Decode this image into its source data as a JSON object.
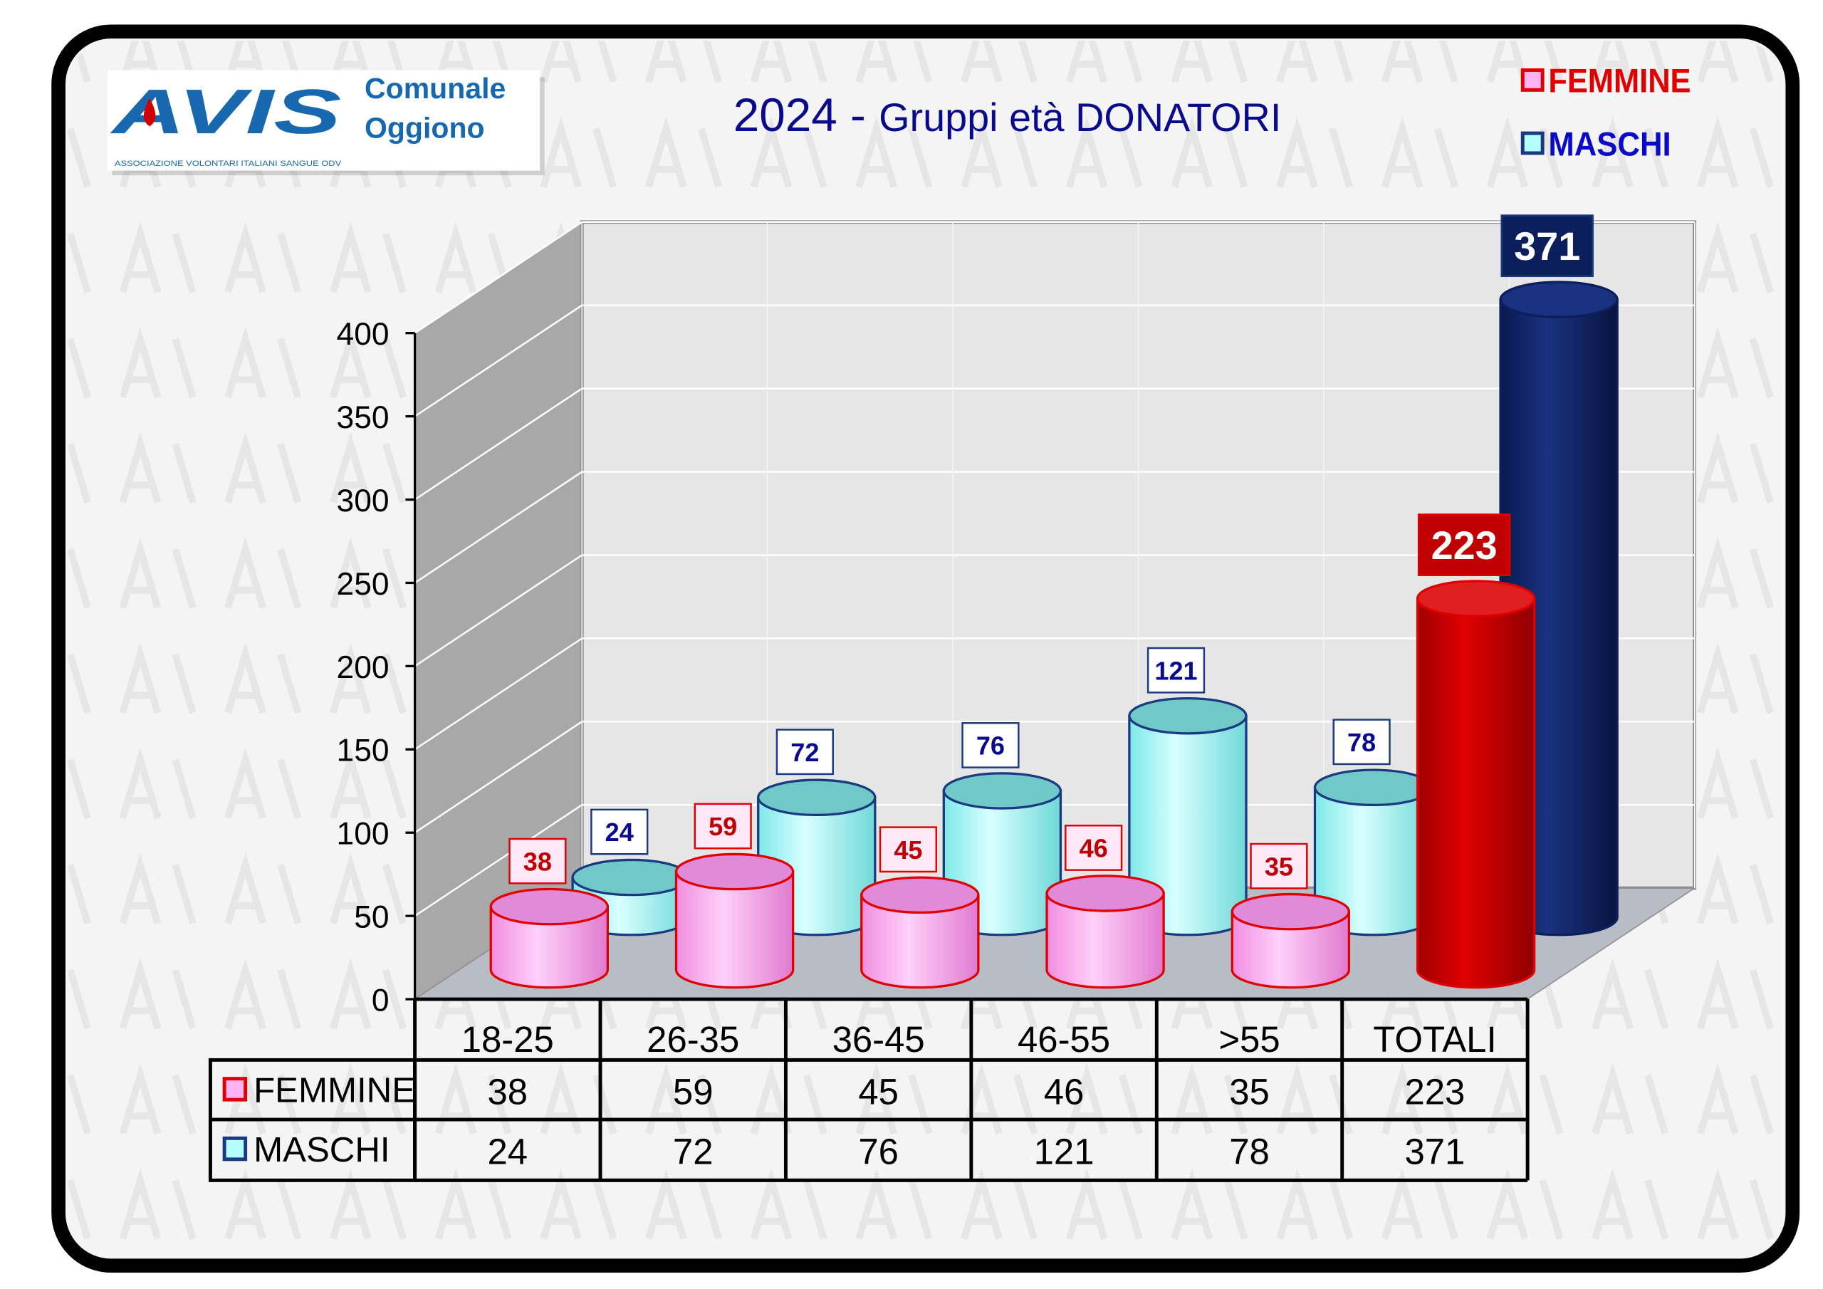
{
  "logo": {
    "brand": "AVIS",
    "line1": "Comunale",
    "line2": "Oggiono",
    "tagline": "ASSOCIAZIONE VOLONTARI ITALIANI SANGUE ODV"
  },
  "colors": {
    "femmine": "#ffb3f2",
    "femmine_border": "#e00000",
    "maschi": "#b3ffff",
    "maschi_border": "#1a3a80",
    "tot_femmine": "#c00000",
    "tot_maschi": "#0b1f5c",
    "title": "#0a0a8c"
  },
  "chart_data": {
    "type": "bar",
    "title_year": "2024 -",
    "title_text": "Gruppi età DONATORI",
    "categories": [
      "18-25",
      "26-35",
      "36-45",
      "46-55",
      ">55",
      "TOTALI"
    ],
    "series": [
      {
        "name": "FEMMINE",
        "values": [
          38,
          59,
          45,
          46,
          35,
          223
        ]
      },
      {
        "name": "MASCHI",
        "values": [
          24,
          72,
          76,
          121,
          78,
          371
        ]
      }
    ],
    "yticks": [
      "0",
      "50",
      "100",
      "150",
      "200",
      "250",
      "300",
      "350",
      "400"
    ],
    "ylim": [
      0,
      400
    ],
    "legend": "top-right",
    "grid": true
  }
}
